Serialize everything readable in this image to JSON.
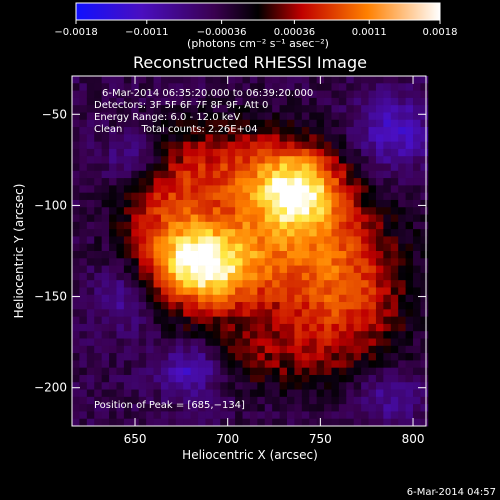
{
  "chart_data": {
    "type": "heatmap",
    "title": "Reconstructed RHESSI Image",
    "xlabel": "Heliocentric X (arcsec)",
    "ylabel": "Heliocentric Y (arcsec)",
    "xlim": [
      616,
      807
    ],
    "ylim": [
      -221,
      -29
    ],
    "x_ticks": [
      650,
      700,
      750,
      800
    ],
    "y_ticks": [
      -50,
      -100,
      -150,
      -200
    ],
    "x_tick_labels": [
      "650",
      "700",
      "750",
      "800"
    ],
    "y_tick_labels": [
      "−50",
      "−100",
      "−150",
      "−200"
    ],
    "colorbar": {
      "range": [
        -0.0018,
        0.0018
      ],
      "ticks": [
        -0.0018,
        -0.0011,
        -0.00036,
        0.00036,
        0.0011,
        0.0018
      ],
      "tick_labels": [
        "−0.0018",
        "−0.0011",
        "−0.00036",
        "0.00036",
        "0.0011",
        "0.0018"
      ],
      "units": "(photons cm⁻² s⁻¹ asec⁻²)"
    },
    "annotations": [
      "6-Mar-2014 06:35:20.000 to 06:39:20.000",
      "Detectors: 3F 5F 6F 7F 8F 9F, Att 0",
      "Energy Range: 6.0 - 12.0 keV",
      "Clean      Total counts: 2.26E+04"
    ],
    "peak_label": "Position of Peak = [685,−134]",
    "peak": [
      685,
      -134
    ],
    "sources": [
      {
        "x": 684,
        "y": -133,
        "sx": 20,
        "sy": 16,
        "amp": 1.0
      },
      {
        "x": 738,
        "y": -92,
        "sx": 17,
        "sy": 16,
        "amp": 0.92
      },
      {
        "x": 728,
        "y": -126,
        "sx": 36,
        "sy": 28,
        "amp": 0.55
      },
      {
        "x": 700,
        "y": -78,
        "sx": 28,
        "sy": 18,
        "amp": 0.42
      },
      {
        "x": 665,
        "y": -100,
        "sx": 18,
        "sy": 22,
        "amp": 0.35
      },
      {
        "x": 766,
        "y": -150,
        "sx": 22,
        "sy": 28,
        "amp": 0.45
      },
      {
        "x": 722,
        "y": -182,
        "sx": 30,
        "sy": 14,
        "amp": 0.28
      },
      {
        "x": 650,
        "y": -75,
        "sx": 12,
        "sy": 10,
        "amp": -0.35
      },
      {
        "x": 790,
        "y": -60,
        "sx": 14,
        "sy": 14,
        "amp": -0.45
      },
      {
        "x": 680,
        "y": -190,
        "sx": 12,
        "sy": 10,
        "amp": -0.5
      },
      {
        "x": 645,
        "y": -150,
        "sx": 12,
        "sy": 14,
        "amp": -0.3
      },
      {
        "x": 785,
        "y": -205,
        "sx": 14,
        "sy": 10,
        "amp": -0.3
      }
    ],
    "grid": false
  },
  "footer": {
    "timestamp": "6-Mar-2014 04:57"
  }
}
